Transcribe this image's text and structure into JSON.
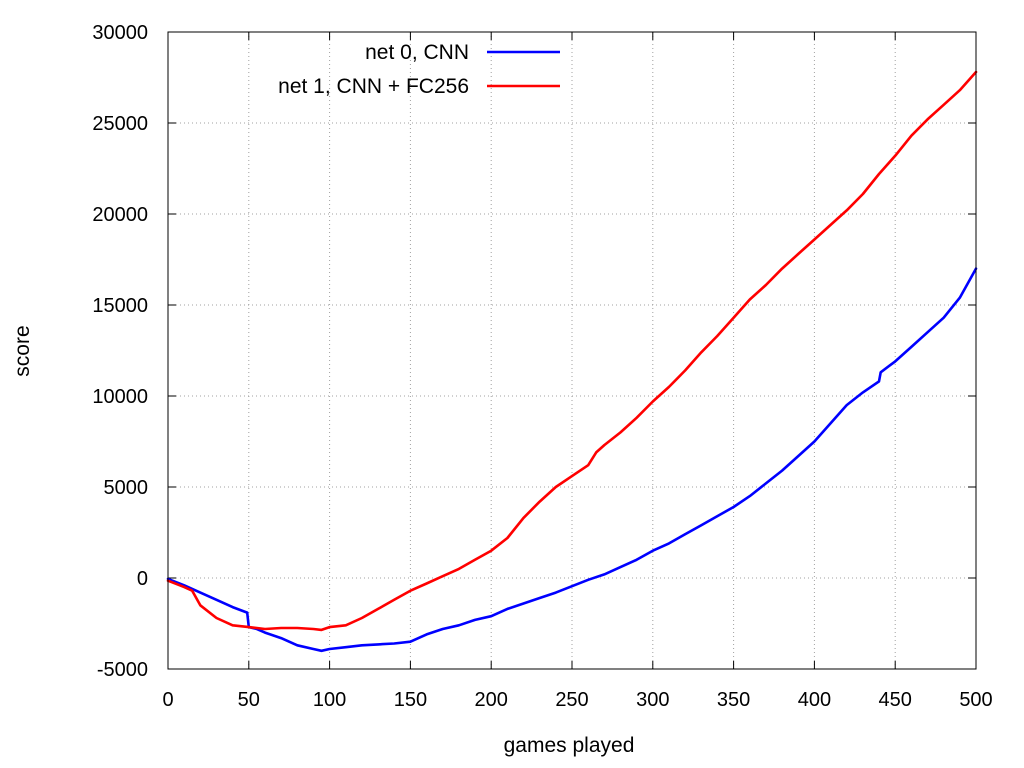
{
  "chart_data": {
    "type": "line",
    "title": "",
    "xlabel": "games played",
    "ylabel": "score",
    "xlim": [
      0,
      500
    ],
    "ylim": [
      -5000,
      30000
    ],
    "x_ticks": [
      0,
      50,
      100,
      150,
      200,
      250,
      300,
      350,
      400,
      450,
      500
    ],
    "y_ticks": [
      -5000,
      0,
      5000,
      10000,
      15000,
      20000,
      25000,
      30000
    ],
    "grid": true,
    "legend_position": "top-left",
    "series": [
      {
        "name": "net 0, CNN",
        "color": "#0000ff",
        "x": [
          0,
          10,
          20,
          30,
          40,
          49,
          50,
          55,
          60,
          70,
          80,
          90,
          95,
          100,
          110,
          120,
          130,
          140,
          150,
          160,
          170,
          180,
          190,
          200,
          210,
          220,
          230,
          240,
          250,
          260,
          270,
          280,
          290,
          300,
          310,
          320,
          330,
          340,
          350,
          360,
          370,
          380,
          390,
          400,
          410,
          420,
          430,
          440,
          441,
          450,
          460,
          470,
          480,
          490,
          500
        ],
        "y": [
          -50,
          -400,
          -800,
          -1200,
          -1600,
          -1900,
          -2700,
          -2800,
          -3000,
          -3300,
          -3700,
          -3900,
          -4000,
          -3900,
          -3800,
          -3700,
          -3650,
          -3600,
          -3500,
          -3100,
          -2800,
          -2600,
          -2300,
          -2100,
          -1700,
          -1400,
          -1100,
          -800,
          -450,
          -100,
          200,
          600,
          1000,
          1500,
          1900,
          2400,
          2900,
          3400,
          3900,
          4500,
          5200,
          5900,
          6700,
          7500,
          8500,
          9500,
          10200,
          10800,
          11300,
          11900,
          12700,
          13500,
          14300,
          15400,
          17000
        ]
      },
      {
        "name": "net 1, CNN + FC256",
        "color": "#ff0000",
        "x": [
          0,
          10,
          15,
          20,
          30,
          40,
          50,
          60,
          70,
          80,
          90,
          95,
          100,
          110,
          120,
          130,
          140,
          150,
          160,
          170,
          180,
          190,
          200,
          210,
          220,
          230,
          240,
          250,
          260,
          265,
          270,
          280,
          290,
          300,
          310,
          320,
          330,
          340,
          350,
          360,
          370,
          380,
          390,
          400,
          410,
          420,
          430,
          440,
          450,
          460,
          470,
          480,
          490,
          500
        ],
        "y": [
          -150,
          -500,
          -700,
          -1500,
          -2200,
          -2600,
          -2700,
          -2800,
          -2750,
          -2750,
          -2800,
          -2850,
          -2700,
          -2600,
          -2200,
          -1700,
          -1200,
          -700,
          -300,
          100,
          500,
          1000,
          1500,
          2200,
          3300,
          4200,
          5000,
          5600,
          6200,
          6900,
          7300,
          8000,
          8800,
          9700,
          10500,
          11400,
          12400,
          13300,
          14300,
          15300,
          16100,
          17000,
          17800,
          18600,
          19400,
          20200,
          21100,
          22200,
          23200,
          24300,
          25200,
          26000,
          26800,
          27800
        ]
      }
    ]
  }
}
